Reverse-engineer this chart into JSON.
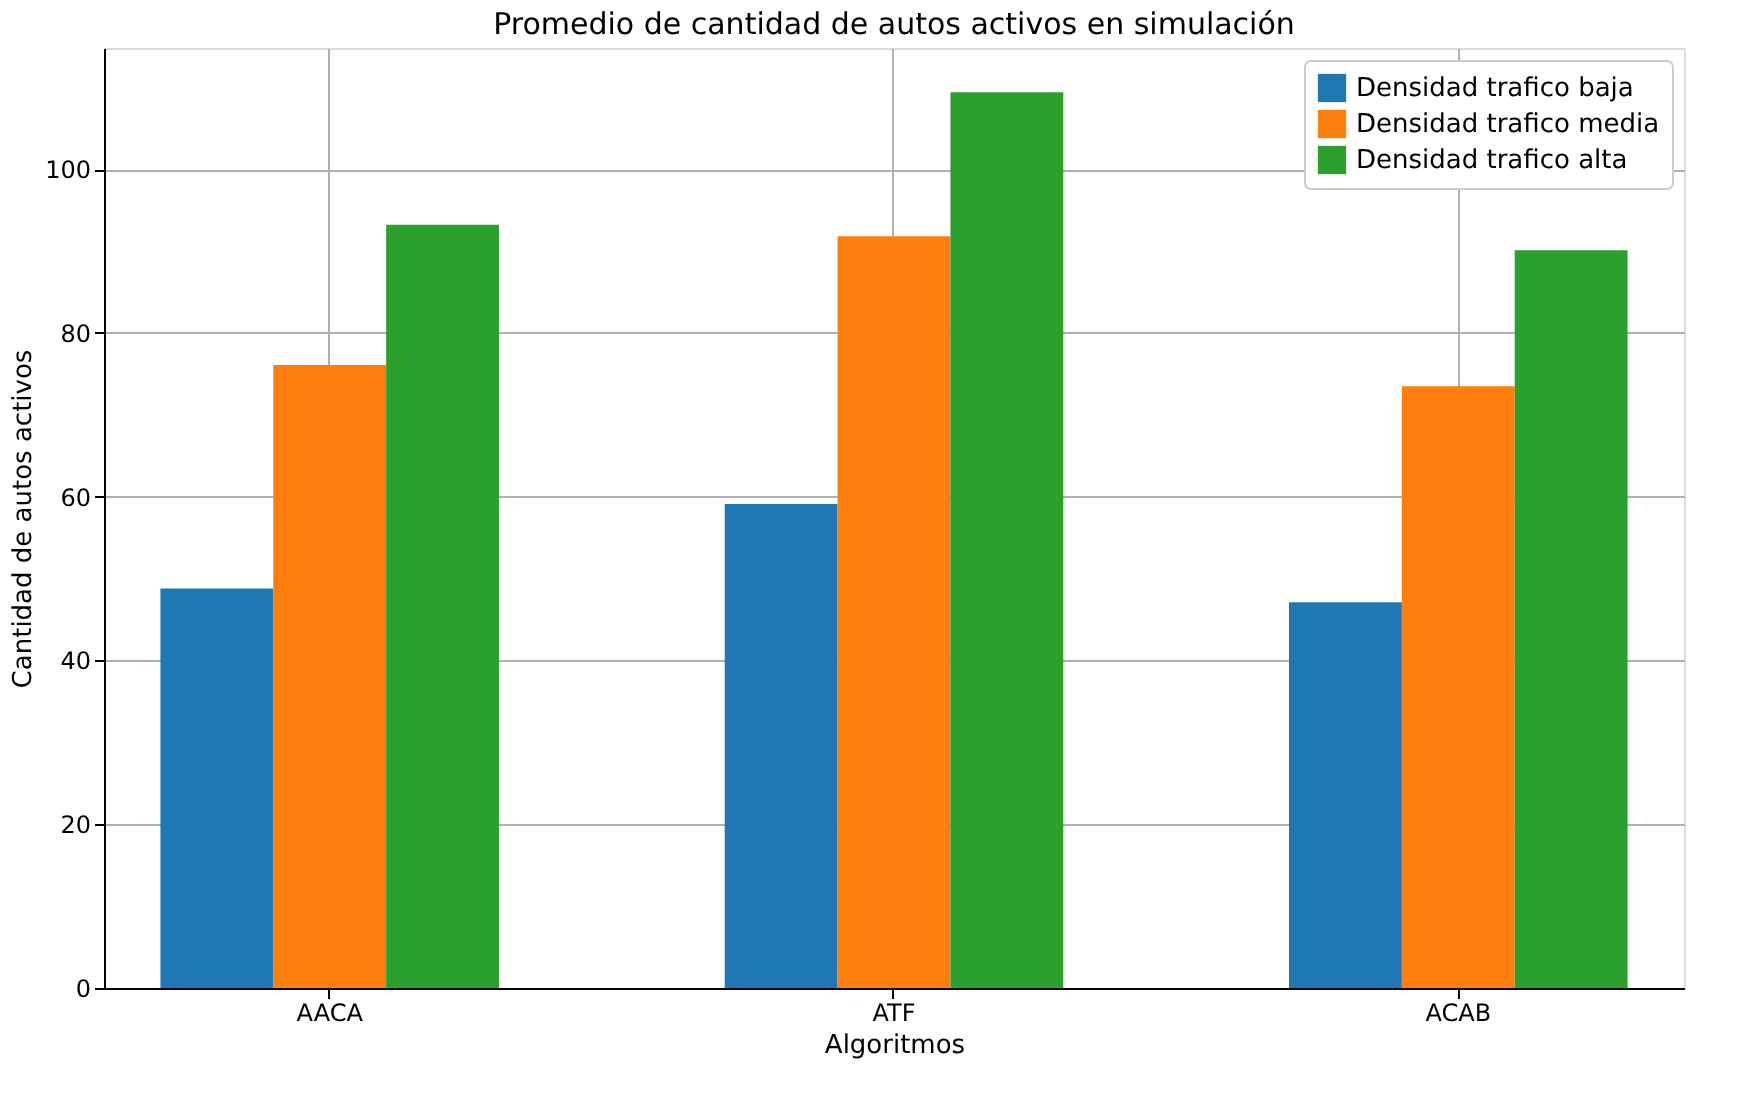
{
  "chart_data": {
    "type": "bar",
    "title": "Promedio de cantidad de autos activos en simulación",
    "xlabel": "Algoritmos",
    "ylabel": "Cantidad de autos activos",
    "categories": [
      "AACA",
      "ATF",
      "ACAB"
    ],
    "series": [
      {
        "name": "Densidad trafico baja",
        "color": "#1f77b4",
        "values": [
          48.8,
          59.1,
          47.1
        ]
      },
      {
        "name": "Densidad trafico media",
        "color": "#ff7f0e",
        "values": [
          76.1,
          91.8,
          73.5
        ]
      },
      {
        "name": "Densidad trafico alta",
        "color": "#2ca02c",
        "values": [
          93.2,
          109.4,
          90.1
        ]
      }
    ],
    "ylim": [
      0,
      114.8
    ],
    "yticks": [
      0,
      20,
      40,
      60,
      80,
      100
    ],
    "grid": true,
    "legend": "top right"
  }
}
